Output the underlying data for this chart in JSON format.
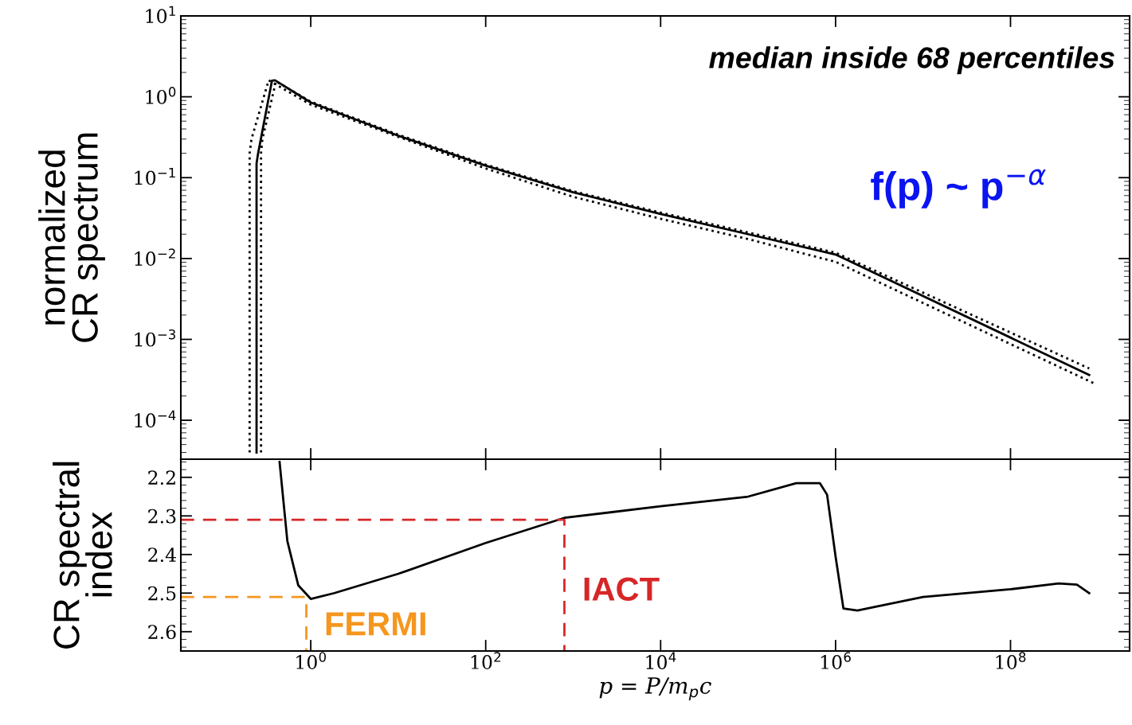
{
  "chart_data": [
    {
      "type": "line",
      "ylabel": "normalized\nCR spectrum",
      "log": "xy",
      "xlim": [
        0.0327,
        2300000000.0
      ],
      "ylim": [
        3.3e-05,
        10
      ],
      "xticks": [
        {
          "value": 1,
          "label": null
        },
        {
          "value": 100,
          "label": null
        },
        {
          "value": 10000,
          "label": null
        },
        {
          "value": 1000000,
          "label": null
        },
        {
          "value": 100000000,
          "label": null
        }
      ],
      "yticks": [
        {
          "value": 0.0001,
          "label": "10$^{−4}$"
        },
        {
          "value": 0.001,
          "label": "10$^{−3}$"
        },
        {
          "value": 0.01,
          "label": "10$^{−2}$"
        },
        {
          "value": 0.1,
          "label": "10$^{−1}$"
        },
        {
          "value": 1,
          "label": "10$^{0}$"
        },
        {
          "value": 10,
          "label": "10$^{1}$"
        }
      ],
      "tick_labels": "y",
      "grid": false,
      "legend": false,
      "annotations": [
        "median inside 68 percentiles",
        "f(p) ~ p$^{−α}$"
      ],
      "series": [
        {
          "color": "#000000",
          "line_style": "solid",
          "x": [
            0.24,
            0.24,
            0.25,
            0.36,
            0.39,
            1,
            10,
            100,
            1000,
            10000,
            100000,
            1000000,
            794000000
          ],
          "values": [
            4e-05,
            0.15,
            0.2,
            1.58,
            1.6,
            0.85,
            0.33,
            0.141,
            0.066,
            0.0355,
            0.02,
            0.0112,
            0.000363
          ]
        },
        {
          "color": "#000000",
          "line_style": "dotted",
          "x": [
            0.27,
            0.27,
            0.28,
            0.4,
            1,
            10,
            100,
            1000,
            10000,
            100000,
            1000000,
            794000000
          ],
          "values": [
            4e-05,
            0.2,
            0.3,
            1.55,
            0.87,
            0.34,
            0.145,
            0.068,
            0.037,
            0.021,
            0.0118,
            0.000437
          ]
        },
        {
          "color": "#000000",
          "line_style": "dotted",
          "x": [
            0.2,
            0.2,
            0.21,
            0.33,
            1,
            10,
            100,
            1000,
            10000,
            100000,
            1000000,
            891000000
          ],
          "values": [
            4e-05,
            0.2,
            0.3,
            1.6,
            0.8,
            0.32,
            0.13,
            0.058,
            0.031,
            0.0174,
            0.0091,
            0.000288
          ]
        }
      ]
    },
    {
      "type": "line",
      "xlabel": "p = P/m$_{p}$c",
      "ylabel": "CR spectral\nindex",
      "log": "x",
      "xlim": [
        0.0327,
        2300000000.0
      ],
      "ylim": [
        2.65,
        2.153
      ],
      "xticks": [
        {
          "value": 1,
          "label": "10$^{0}$"
        },
        {
          "value": 100,
          "label": "10$^{2}$"
        },
        {
          "value": 10000,
          "label": "10$^{4}$"
        },
        {
          "value": 1000000,
          "label": "10$^{6}$"
        },
        {
          "value": 100000000,
          "label": "10$^{8}$"
        }
      ],
      "yticks": [
        2.2,
        2.3,
        2.4,
        2.5,
        2.6
      ],
      "grid": false,
      "legend": false,
      "series": [
        {
          "color": "#000000",
          "line_style": "solid",
          "x": [
            0.44,
            0.54,
            0.72,
            1,
            1.86,
            10,
            100,
            794,
            10000,
            100000,
            355000,
            661000,
            800000,
            1000000,
            1230000,
            1780000,
            10000000,
            100000000,
            355000000,
            575000000,
            794000000
          ],
          "values": [
            2.16,
            2.365,
            2.48,
            2.515,
            2.5,
            2.45,
            2.37,
            2.305,
            2.275,
            2.25,
            2.215,
            2.215,
            2.245,
            2.405,
            2.54,
            2.545,
            2.51,
            2.49,
            2.475,
            2.478,
            2.5
          ]
        },
        {
          "name": "IACT",
          "color": "#d62728",
          "line_style": "dashed",
          "x": [
            0.0327,
            794,
            794
          ],
          "values": [
            2.31,
            2.31,
            2.65
          ]
        },
        {
          "name": "FERMI",
          "color": "#f5961e",
          "line_style": "dashed",
          "x": [
            0.0327,
            0.89,
            0.89
          ],
          "values": [
            2.51,
            2.51,
            2.65
          ]
        }
      ]
    }
  ]
}
